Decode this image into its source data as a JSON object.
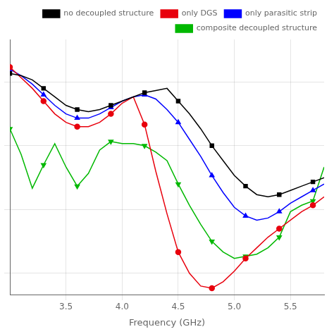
{
  "chart_data": {
    "type": "line",
    "x_label": "Frequency (GHz)",
    "x": [
      3.0,
      3.1,
      3.2,
      3.3,
      3.4,
      3.5,
      3.6,
      3.7,
      3.8,
      3.9,
      4.0,
      4.1,
      4.2,
      4.3,
      4.4,
      4.5,
      4.6,
      4.7,
      4.8,
      4.9,
      5.0,
      5.1,
      5.2,
      5.3,
      5.4,
      5.5,
      5.6,
      5.7,
      5.8
    ],
    "series": [
      {
        "name": "no decoupled structure",
        "color": "#000000",
        "marker": "square",
        "values": [
          -13,
          -13.5,
          -14.5,
          -16.5,
          -18.5,
          -20.5,
          -21.5,
          -22.0,
          -21.5,
          -20.5,
          -19.5,
          -18.5,
          -17.5,
          -17.0,
          -16.5,
          -19.5,
          -22.5,
          -26.0,
          -30.0,
          -33.5,
          -37.0,
          -39.5,
          -41.5,
          -42.0,
          -41.5,
          -40.5,
          -39.5,
          -38.5,
          -37.5
        ],
        "marker_x": [
          3.0,
          3.3,
          3.6,
          3.9,
          4.2,
          4.5,
          4.8,
          5.1,
          5.4,
          5.7
        ]
      },
      {
        "name": "only DGS",
        "color": "#e8000d",
        "marker": "circle",
        "values": [
          -11.5,
          -14.0,
          -16.5,
          -19.5,
          -22.5,
          -24.5,
          -25.5,
          -25.5,
          -24.5,
          -22.5,
          -20.0,
          -18.5,
          -25.0,
          -36.0,
          -46.0,
          -55.0,
          -60.0,
          -63.0,
          -63.5,
          -62.0,
          -59.5,
          -56.5,
          -54.0,
          -51.5,
          -49.5,
          -47.5,
          -45.5,
          -44.0,
          -42.0
        ],
        "marker_x": [
          3.0,
          3.3,
          3.6,
          3.9,
          4.2,
          4.5,
          4.8,
          5.1,
          5.4,
          5.7
        ]
      },
      {
        "name": "only parasitic strip",
        "color": "#0000ff",
        "marker": "triangle-up",
        "values": [
          -12,
          -13.5,
          -15.5,
          -18.0,
          -20.5,
          -22.5,
          -23.5,
          -23.5,
          -22.5,
          -21.0,
          -19.5,
          -18.5,
          -18.0,
          -19.0,
          -21.5,
          -24.5,
          -28.5,
          -32.5,
          -37.0,
          -41.0,
          -44.5,
          -46.5,
          -47.5,
          -47.0,
          -45.5,
          -43.5,
          -42.0,
          -40.5,
          -39.0
        ],
        "marker_x": [
          3.0,
          3.3,
          3.6,
          3.9,
          4.2,
          4.5,
          4.8,
          5.1,
          5.4,
          5.7
        ]
      },
      {
        "name": "composite decoupled structure",
        "color": "#00b800",
        "marker": "triangle-down",
        "values": [
          -26,
          -32.0,
          -40.0,
          -34.5,
          -29.5,
          -35.0,
          -39.5,
          -36.5,
          -31.0,
          -29.0,
          -29.5,
          -29.5,
          -30.0,
          -31.5,
          -33.5,
          -39.0,
          -44.0,
          -48.5,
          -52.5,
          -55.0,
          -56.5,
          -56.0,
          -55.5,
          -54.0,
          -51.5,
          -45.5,
          -44.0,
          -43.0,
          -35.0
        ],
        "marker_x": [
          3.0,
          3.3,
          3.6,
          3.9,
          4.2,
          4.5,
          4.8,
          5.1,
          5.4,
          5.7
        ]
      }
    ],
    "xlim": [
      3.0,
      5.8
    ],
    "ylim": [
      -65,
      -5
    ],
    "xticks": [
      {
        "value": 3.5,
        "label": "3.5"
      },
      {
        "value": 4.0,
        "label": "4.0"
      },
      {
        "value": 4.5,
        "label": "4.5"
      },
      {
        "value": 5.0,
        "label": "5.0"
      },
      {
        "value": 5.5,
        "label": "5.5"
      }
    ],
    "yticks": [
      -60,
      -45,
      -30,
      -15
    ],
    "tick_labels": "x",
    "grid": true,
    "legend": "upper right"
  }
}
